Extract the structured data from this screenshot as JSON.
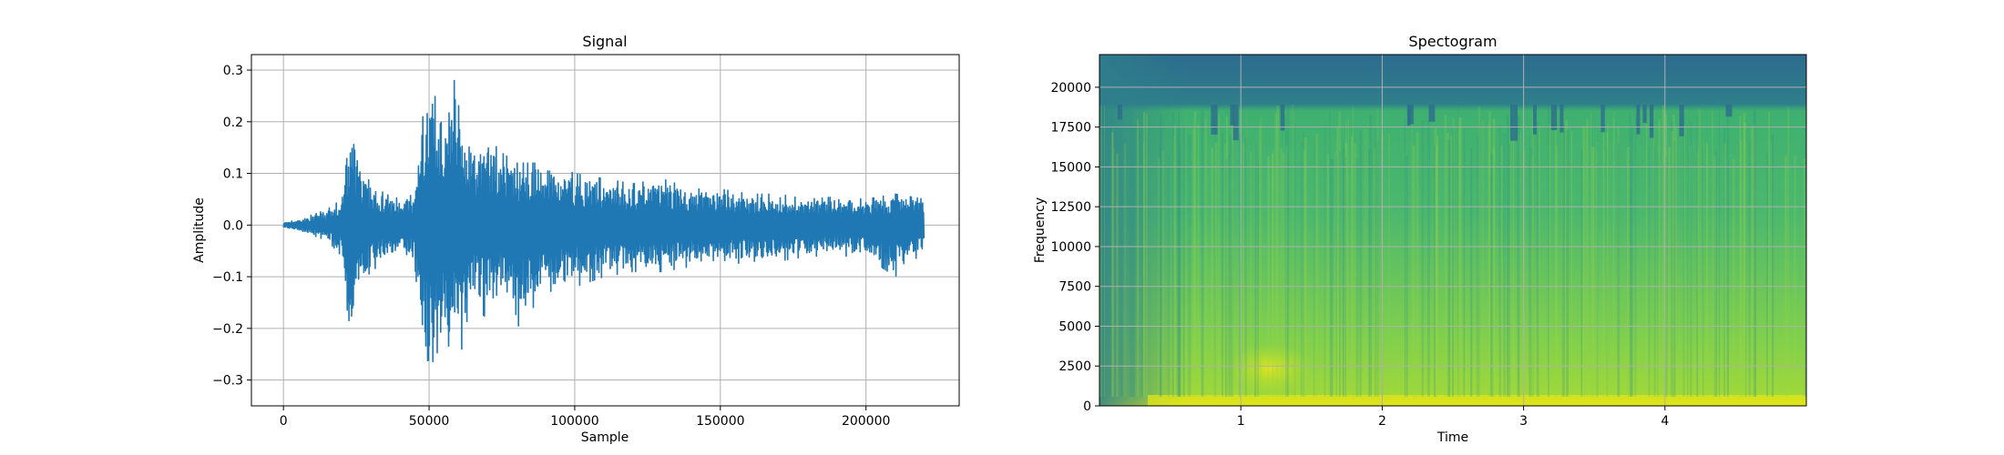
{
  "chart_data": [
    {
      "type": "line",
      "title": "Signal",
      "xlabel": "Sample",
      "ylabel": "Amplitude",
      "xlim": [
        -11000,
        232000
      ],
      "ylim": [
        -0.35,
        0.33
      ],
      "grid": true,
      "xticks": [
        0,
        50000,
        100000,
        150000,
        200000
      ],
      "xtick_labels": [
        "0",
        "50000",
        "100000",
        "150000",
        "200000"
      ],
      "yticks": [
        -0.3,
        -0.2,
        -0.1,
        0.0,
        0.1,
        0.2,
        0.3
      ],
      "ytick_labels": [
        "−0.3",
        "−0.2",
        "−0.1",
        "0.0",
        "0.1",
        "0.2",
        "0.3"
      ],
      "series": [
        {
          "color": "#1f77b4",
          "envelope": {
            "x": [
              0,
              5000,
              10000,
              15000,
              20000,
              22000,
              24000,
              26000,
              30000,
              35000,
              40000,
              45000,
              47000,
              49000,
              52000,
              55000,
              58000,
              60000,
              62000,
              65000,
              70000,
              75000,
              80000,
              90000,
              100000,
              110000,
              120000,
              130000,
              140000,
              150000,
              160000,
              170000,
              180000,
              190000,
              200000,
              210000,
              220000
            ],
            "upper": [
              0.005,
              0.01,
              0.02,
              0.03,
              0.05,
              0.14,
              0.19,
              0.12,
              0.08,
              0.06,
              0.05,
              0.06,
              0.18,
              0.25,
              0.28,
              0.22,
              0.27,
              0.3,
              0.2,
              0.15,
              0.17,
              0.14,
              0.12,
              0.12,
              0.1,
              0.09,
              0.08,
              0.09,
              0.07,
              0.07,
              0.06,
              0.06,
              0.05,
              0.055,
              0.05,
              0.06,
              0.05
            ],
            "lower": [
              -0.005,
              -0.01,
              -0.02,
              -0.03,
              -0.06,
              -0.17,
              -0.23,
              -0.12,
              -0.09,
              -0.07,
              -0.06,
              -0.07,
              -0.2,
              -0.31,
              -0.25,
              -0.24,
              -0.23,
              -0.3,
              -0.2,
              -0.16,
              -0.18,
              -0.14,
              -0.2,
              -0.13,
              -0.12,
              -0.1,
              -0.09,
              -0.09,
              -0.08,
              -0.08,
              -0.07,
              -0.07,
              -0.06,
              -0.06,
              -0.06,
              -0.1,
              -0.05
            ]
          }
        }
      ]
    },
    {
      "type": "heatmap",
      "title": "Spectogram",
      "xlabel": "Time",
      "ylabel": "Frequency",
      "xlim": [
        0,
        5
      ],
      "ylim": [
        0,
        22050
      ],
      "grid": true,
      "xticks": [
        1,
        2,
        3,
        4
      ],
      "xtick_labels": [
        "1",
        "2",
        "3",
        "4"
      ],
      "yticks": [
        0,
        2500,
        5000,
        7500,
        10000,
        12500,
        15000,
        17500,
        20000
      ],
      "ytick_labels": [
        "0",
        "2500",
        "5000",
        "7500",
        "10000",
        "12500",
        "15000",
        "17500",
        "20000"
      ],
      "colormap": "viridis",
      "colors": {
        "low": "#2d6b8e",
        "mid": "#3aa57a",
        "high": "#b8de29",
        "peak": "#e2e418"
      }
    }
  ]
}
